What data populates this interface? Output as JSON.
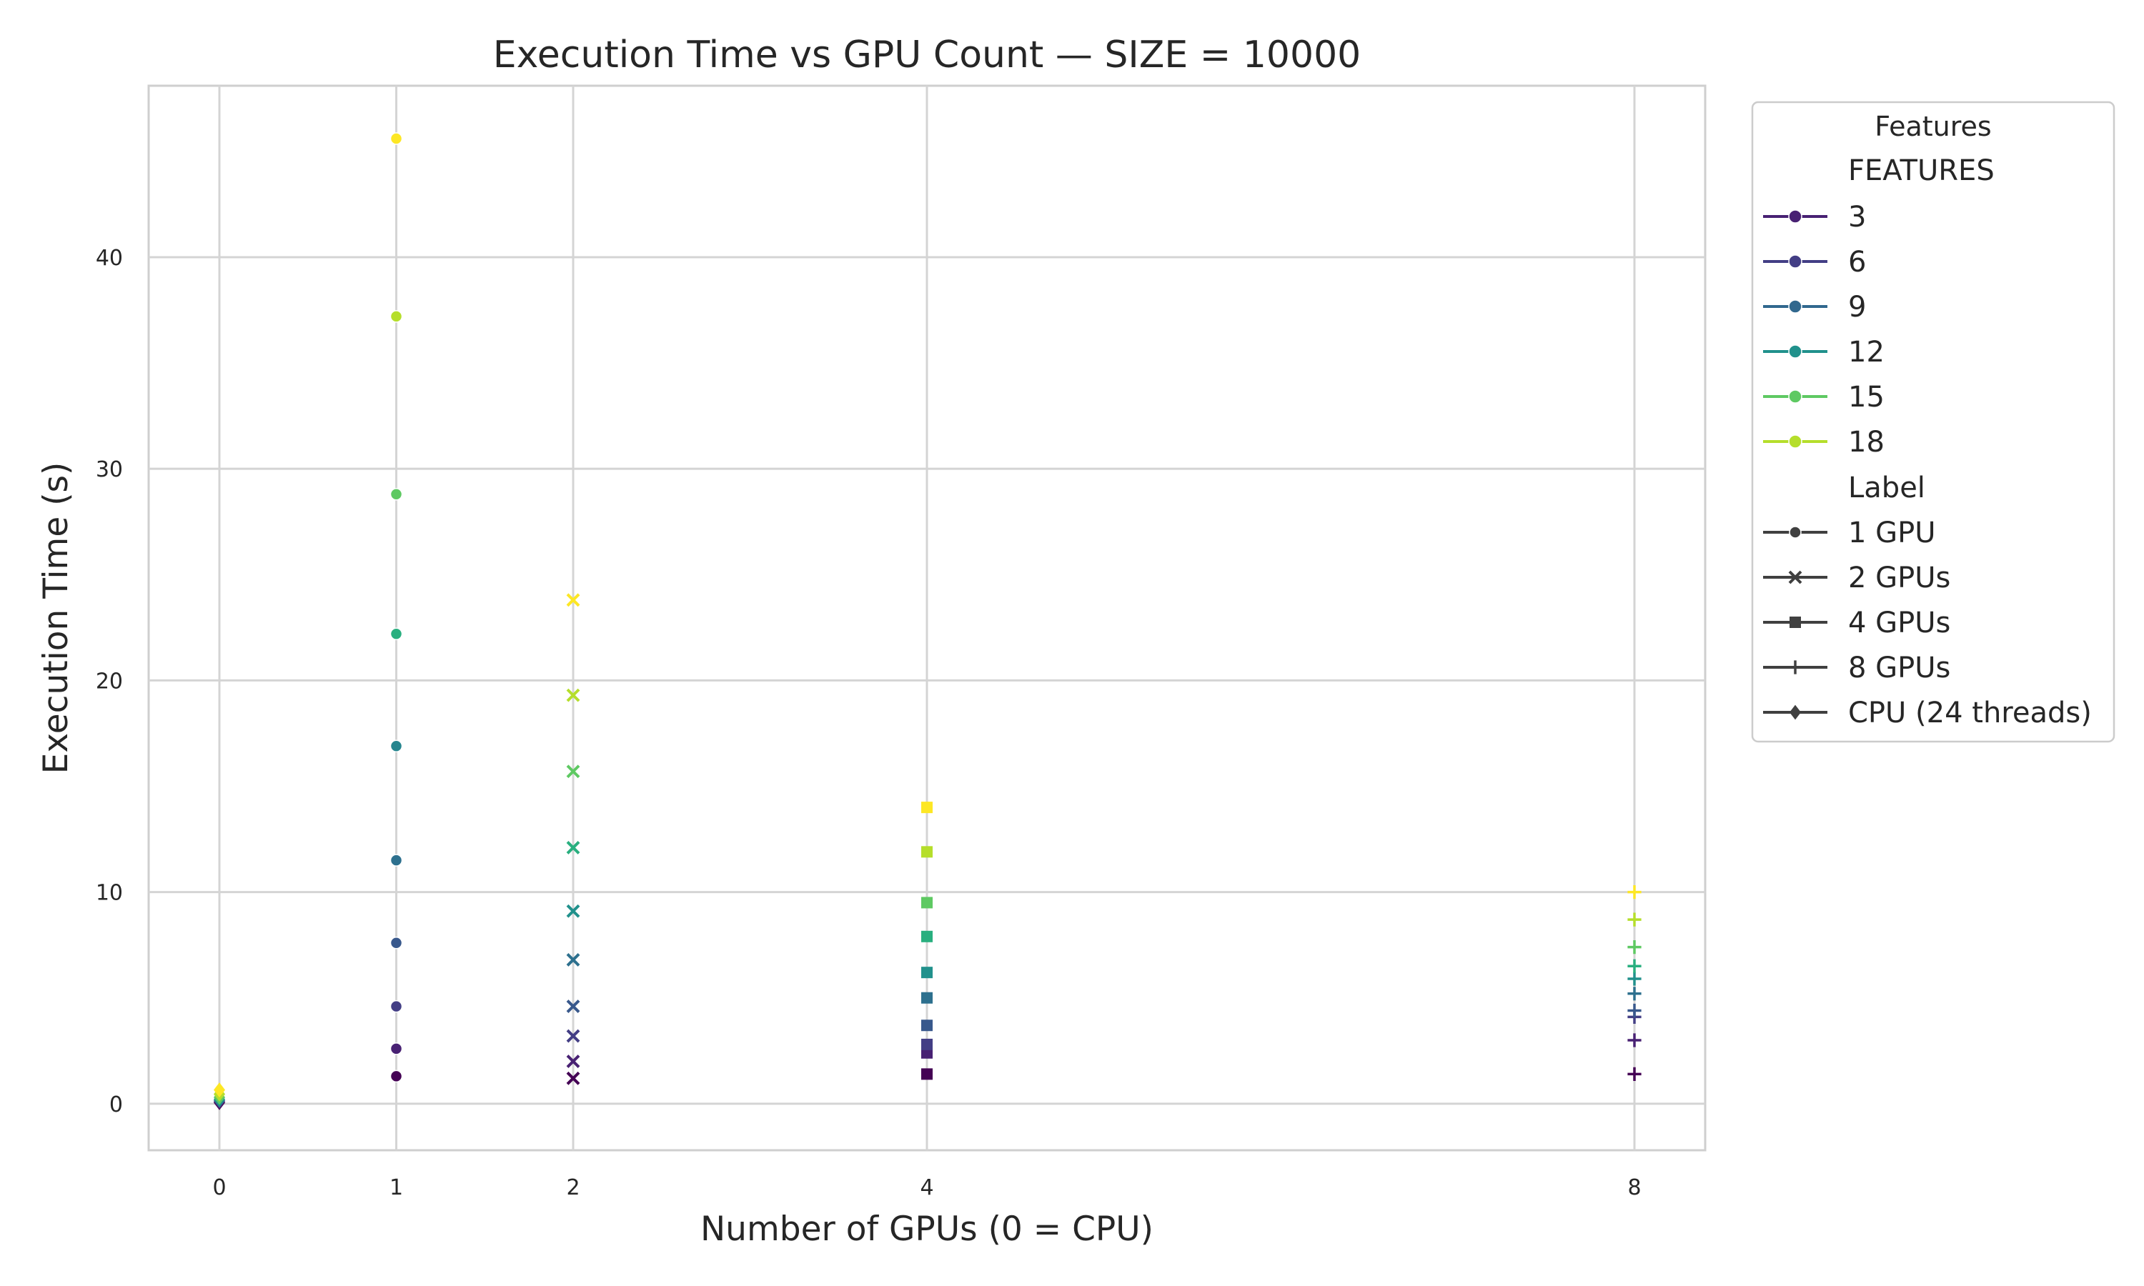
{
  "chart_data": {
    "type": "scatter",
    "title": "Execution Time vs GPU Count — SIZE = 10000",
    "xlabel": "Number of GPUs (0 = CPU)",
    "ylabel": "Execution Time (s)",
    "x_ticks": [
      0,
      1,
      2,
      4,
      8
    ],
    "y_ticks": [
      0,
      10,
      20,
      30,
      40
    ],
    "xlim": [
      -0.4,
      8.4
    ],
    "ylim": [
      -2.2,
      48.1
    ],
    "grid": true,
    "legend": {
      "title": "Features",
      "placement": "outside-right",
      "hue_title": "FEATURES",
      "style_title": "Label",
      "hue_entries": [
        {
          "label": "3",
          "color": "#482173"
        },
        {
          "label": "6",
          "color": "#433e85"
        },
        {
          "label": "9",
          "color": "#31688e"
        },
        {
          "label": "12",
          "color": "#21918c"
        },
        {
          "label": "15",
          "color": "#5ec962"
        },
        {
          "label": "18",
          "color": "#b5de2b"
        }
      ],
      "style_entries": [
        {
          "label": "1 GPU",
          "marker": "circle"
        },
        {
          "label": "2 GPUs",
          "marker": "x"
        },
        {
          "label": "4 GPUs",
          "marker": "square"
        },
        {
          "label": "8 GPUs",
          "marker": "plus"
        },
        {
          "label": "CPU (24 threads)",
          "marker": "diamond"
        }
      ]
    },
    "series": [
      {
        "label": "1 GPU",
        "marker": "circle",
        "x": 1,
        "points": [
          {
            "y": 1.3,
            "color": "#440154"
          },
          {
            "y": 2.6,
            "color": "#482173"
          },
          {
            "y": 4.6,
            "color": "#433e85"
          },
          {
            "y": 7.6,
            "color": "#38588c"
          },
          {
            "y": 11.5,
            "color": "#2d708e"
          },
          {
            "y": 16.9,
            "color": "#25858e"
          },
          {
            "y": 22.2,
            "color": "#29af7f"
          },
          {
            "y": 28.8,
            "color": "#5ec962"
          },
          {
            "y": 37.2,
            "color": "#b5de2b"
          },
          {
            "y": 45.6,
            "color": "#fde725"
          }
        ]
      },
      {
        "label": "2 GPUs",
        "marker": "x",
        "x": 2,
        "points": [
          {
            "y": 1.2,
            "color": "#440154"
          },
          {
            "y": 2.0,
            "color": "#482173"
          },
          {
            "y": 3.2,
            "color": "#433e85"
          },
          {
            "y": 4.6,
            "color": "#38588c"
          },
          {
            "y": 6.8,
            "color": "#2d708e"
          },
          {
            "y": 9.1,
            "color": "#21918c"
          },
          {
            "y": 12.1,
            "color": "#29af7f"
          },
          {
            "y": 15.7,
            "color": "#5ec962"
          },
          {
            "y": 19.3,
            "color": "#b5de2b"
          },
          {
            "y": 23.8,
            "color": "#fde725"
          }
        ]
      },
      {
        "label": "4 GPUs",
        "marker": "square",
        "x": 4,
        "points": [
          {
            "y": 1.4,
            "color": "#440154"
          },
          {
            "y": 2.4,
            "color": "#482173"
          },
          {
            "y": 2.8,
            "color": "#433e85"
          },
          {
            "y": 3.7,
            "color": "#38588c"
          },
          {
            "y": 5.0,
            "color": "#2d708e"
          },
          {
            "y": 6.2,
            "color": "#21918c"
          },
          {
            "y": 7.9,
            "color": "#29af7f"
          },
          {
            "y": 9.5,
            "color": "#5ec962"
          },
          {
            "y": 11.9,
            "color": "#b5de2b"
          },
          {
            "y": 14.0,
            "color": "#fde725"
          }
        ]
      },
      {
        "label": "8 GPUs",
        "marker": "plus",
        "x": 8,
        "points": [
          {
            "y": 1.4,
            "color": "#440154"
          },
          {
            "y": 3.0,
            "color": "#482173"
          },
          {
            "y": 4.1,
            "color": "#433e85"
          },
          {
            "y": 4.4,
            "color": "#38588c"
          },
          {
            "y": 5.2,
            "color": "#2d708e"
          },
          {
            "y": 5.9,
            "color": "#21918c"
          },
          {
            "y": 6.5,
            "color": "#29af7f"
          },
          {
            "y": 7.4,
            "color": "#5ec962"
          },
          {
            "y": 8.7,
            "color": "#b5de2b"
          },
          {
            "y": 10.0,
            "color": "#fde725"
          }
        ]
      },
      {
        "label": "CPU (24 threads)",
        "marker": "diamond",
        "x": 0,
        "points": [
          {
            "y": 0.05,
            "color": "#440154"
          },
          {
            "y": 0.1,
            "color": "#482173"
          },
          {
            "y": 0.15,
            "color": "#31688e"
          },
          {
            "y": 0.2,
            "color": "#21918c"
          },
          {
            "y": 0.3,
            "color": "#5ec962"
          },
          {
            "y": 0.45,
            "color": "#b5de2b"
          },
          {
            "y": 0.65,
            "color": "#fde725"
          }
        ]
      }
    ]
  }
}
